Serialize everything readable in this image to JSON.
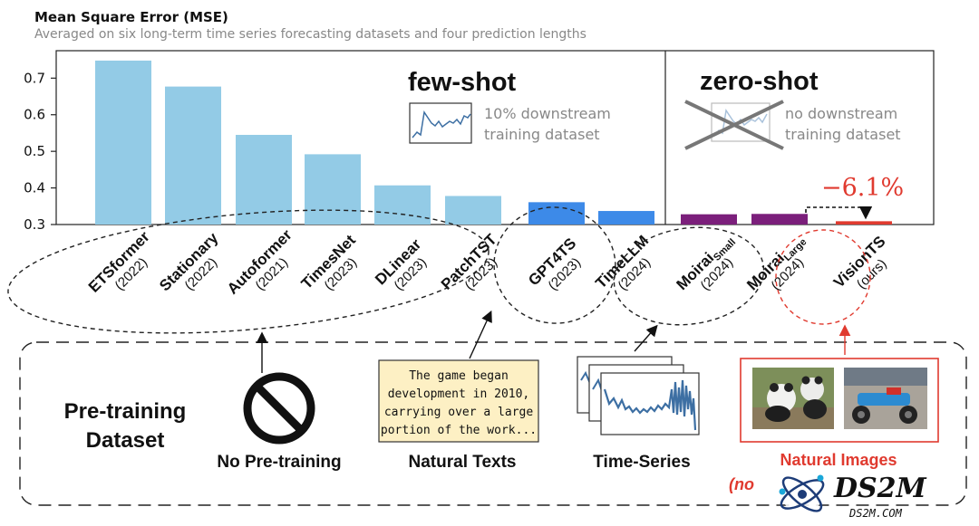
{
  "title": "Mean Square Error (MSE)",
  "subtitle": "Averaged on six long-term time series forecasting datasets and four prediction lengths",
  "chart_data": {
    "type": "bar",
    "ylim": [
      0.3,
      0.775
    ],
    "yticks": [
      "0.3",
      "0.4",
      "0.5",
      "0.6",
      "0.7"
    ],
    "ytick_values": [
      0.3,
      0.4,
      0.5,
      0.6,
      0.7
    ],
    "bars": [
      {
        "name": "ETSformer",
        "year": "(2022)",
        "value": 0.748,
        "color": "#93cbe6"
      },
      {
        "name": "Stationary",
        "year": "(2022)",
        "value": 0.677,
        "color": "#93cbe6"
      },
      {
        "name": "Autoformer",
        "year": "(2021)",
        "value": 0.545,
        "color": "#93cbe6"
      },
      {
        "name": "TimesNet",
        "year": "(2023)",
        "value": 0.492,
        "color": "#93cbe6"
      },
      {
        "name": "DLinear",
        "year": "(2023)",
        "value": 0.407,
        "color": "#93cbe6"
      },
      {
        "name": "PatchTST",
        "year": "(2023)",
        "value": 0.378,
        "color": "#93cbe6"
      },
      {
        "name": "GPT4TS",
        "year": "(2023)",
        "value": 0.361,
        "color": "#3d8ae8"
      },
      {
        "name": "TimeLLM",
        "year": "(2024)",
        "value": 0.337,
        "color": "#3d8ae8"
      },
      {
        "name": "Moirai",
        "sub": "Small",
        "year": "(2024)",
        "value": 0.328,
        "color": "#7b1f7b"
      },
      {
        "name": "Moirai",
        "sub": "Large",
        "year": "(2024)",
        "value": 0.329,
        "color": "#7b1f7b"
      },
      {
        "name": "VisionTS",
        "year": "(ours)",
        "value": 0.309,
        "color": "#e03a2f"
      }
    ],
    "regions": {
      "few_shot": {
        "label": "few-shot",
        "desc1": "10% downstream",
        "desc2": "training dataset"
      },
      "zero_shot": {
        "label": "zero-shot",
        "desc1": "no downstream",
        "desc2": "training dataset"
      }
    },
    "improvement": "−6.1%"
  },
  "pretraining": {
    "heading1": "Pre-training",
    "heading2": "Dataset",
    "none_label": "No Pre-training",
    "text_label": "Natural Texts",
    "text_sample": [
      "The game began",
      "development in 2010,",
      "carrying over a large",
      "portion of the work..."
    ],
    "ts_label": "Time-Series",
    "img_label": "Natural Images",
    "note": "(no"
  },
  "watermark": {
    "big": "DS2M",
    "small": "DS2M.COM"
  },
  "colors": {
    "light_blue": "#93cbe6",
    "blue": "#3d8ae8",
    "purple": "#7b1f7b",
    "red": "#e03a2f"
  }
}
